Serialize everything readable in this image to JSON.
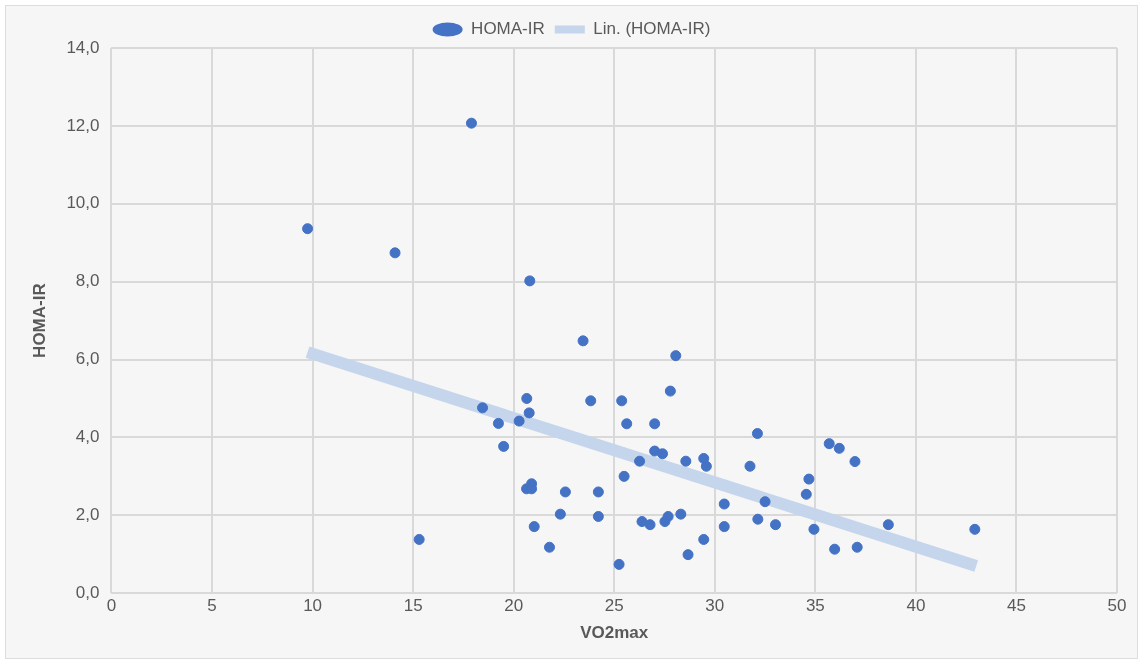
{
  "chart_data": {
    "type": "scatter",
    "xlabel": "VO2max",
    "ylabel": "HOMA-IR",
    "xlim": [
      0,
      50
    ],
    "xticks": [
      0,
      5,
      10,
      15,
      20,
      25,
      30,
      35,
      40,
      45,
      50
    ],
    "ylim": [
      0,
      14
    ],
    "yticks": [
      {
        "value": 0,
        "label": "0,0"
      },
      {
        "value": 2,
        "label": "2,0"
      },
      {
        "value": 4,
        "label": "4,0"
      },
      {
        "value": 6,
        "label": "6,0"
      },
      {
        "value": 8,
        "label": "8,0"
      },
      {
        "value": 10,
        "label": "10,0"
      },
      {
        "value": 12,
        "label": "12,0"
      },
      {
        "value": 14,
        "label": "14,0"
      }
    ],
    "grid": true,
    "legend": "top",
    "series": [
      {
        "name": "HOMA-IR",
        "marker": "circle",
        "color": "#4472c4",
        "x": [
          9.75,
          14.1,
          17.9,
          20.8,
          23.45,
          28.06,
          18.45,
          20.65,
          23.83,
          25.37,
          27.79,
          19.24,
          20.27,
          20.77,
          25.62,
          27.01,
          19.5,
          27.01,
          27.4,
          26.26,
          28.56,
          29.45,
          29.58,
          25.49,
          20.89,
          20.64,
          20.89,
          22.57,
          24.21,
          30.47,
          22.32,
          24.21,
          26.38,
          26.78,
          27.52,
          27.68,
          28.31,
          30.47,
          21.02,
          15.3,
          21.78,
          29.45,
          28.67,
          25.24,
          32.12,
          31.75,
          32.5,
          32.14,
          33.02,
          34.68,
          34.55,
          34.93,
          35.69,
          36.19,
          36.97,
          35.96,
          37.08,
          38.63,
          42.93
        ],
        "values": [
          9.36,
          8.74,
          12.07,
          8.02,
          6.48,
          6.1,
          4.76,
          5.0,
          4.94,
          4.94,
          5.19,
          4.36,
          4.42,
          4.63,
          4.35,
          4.35,
          3.77,
          3.65,
          3.58,
          3.39,
          3.39,
          3.46,
          3.26,
          3.0,
          2.81,
          2.68,
          2.68,
          2.6,
          2.6,
          2.29,
          2.03,
          1.97,
          1.84,
          1.76,
          1.84,
          1.97,
          2.03,
          1.71,
          1.71,
          1.38,
          1.18,
          1.38,
          0.99,
          0.74,
          4.1,
          3.26,
          2.35,
          1.9,
          1.76,
          2.93,
          2.54,
          1.64,
          3.84,
          3.72,
          3.38,
          1.13,
          1.18,
          1.76,
          1.64
        ]
      },
      {
        "name": "Lin. (HOMA-IR)",
        "type": "line",
        "marker": "none",
        "color": "#c5d5ec",
        "x": [
          9.75,
          43
        ],
        "values": [
          6.19,
          0.7
        ]
      }
    ]
  }
}
